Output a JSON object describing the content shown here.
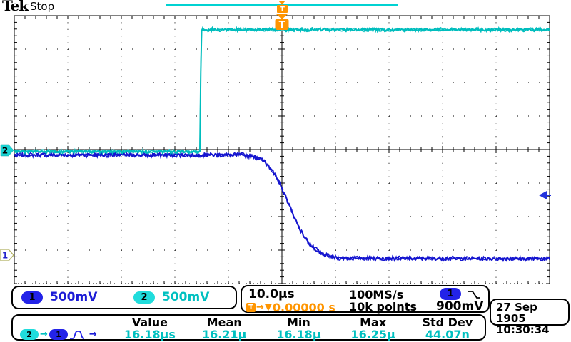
{
  "header": {
    "logo": "Tek",
    "status": "Stop"
  },
  "channels": {
    "ch1": {
      "label": "1",
      "scale": "500mV",
      "color": "#1515cf"
    },
    "ch2": {
      "label": "2",
      "scale": "500mV",
      "color": "#00bdbd"
    }
  },
  "timebase": {
    "scale": "10.0µs",
    "sample_rate": "100MS/s",
    "record": "10k points"
  },
  "trigger": {
    "marker": "T",
    "delay_arrow": "→",
    "delay_caret": "▼",
    "delay": "0.00000 s",
    "source": "1",
    "slope": "falling-edge",
    "level": "900mV"
  },
  "datetime": {
    "date": "27 Sep 1905",
    "time": "10:30:34"
  },
  "measurement": {
    "from": "2",
    "to": "1",
    "from_arrow": "→",
    "to_arrow": "→",
    "columns": [
      "Value",
      "Mean",
      "Min",
      "Max",
      "Std Dev"
    ],
    "values": [
      "16.18µs",
      "16.21µ",
      "16.18µ",
      "16.25µ",
      "44.07n"
    ]
  },
  "chart_data": {
    "type": "line",
    "x_unit": "µs",
    "y_unit": "V",
    "us_per_div": 10,
    "x_range_us": [
      -50,
      50
    ],
    "divisions": {
      "horizontal": 10,
      "vertical": 8
    },
    "volts_per_div_label": "500mV",
    "trigger": {
      "time_us": 0,
      "level_v": 0.9,
      "source": "CH1",
      "slope": "falling"
    },
    "measurement_note": "delay CH2 rising edge to CH1 falling edge = 16.18µs",
    "series": [
      {
        "name": "CH1",
        "color": "#1515cf",
        "volts_per_div": 0.5,
        "ground_div_from_center": -3.16,
        "noise_v": 0.035,
        "points": [
          [
            -50,
            1.5
          ],
          [
            -7,
            1.5
          ],
          [
            -5,
            1.47
          ],
          [
            -4,
            1.44
          ],
          [
            -3,
            1.38
          ],
          [
            -2,
            1.29
          ],
          [
            -1,
            1.16
          ],
          [
            0,
            1.0
          ],
          [
            1,
            0.82
          ],
          [
            2,
            0.63
          ],
          [
            3,
            0.45
          ],
          [
            4,
            0.3
          ],
          [
            5,
            0.19
          ],
          [
            6,
            0.11
          ],
          [
            7,
            0.05
          ],
          [
            8,
            0.01
          ],
          [
            9,
            -0.02
          ],
          [
            11,
            -0.04
          ],
          [
            50,
            -0.05
          ]
        ]
      },
      {
        "name": "CH2",
        "color": "#00bdbd",
        "volts_per_div": 0.5,
        "ground_div_from_center": -0.06,
        "noise_v": 0.03,
        "points": [
          [
            -50,
            0
          ],
          [
            -15.2,
            0
          ],
          [
            -15.15,
            1.82
          ],
          [
            50,
            1.82
          ]
        ]
      }
    ]
  }
}
